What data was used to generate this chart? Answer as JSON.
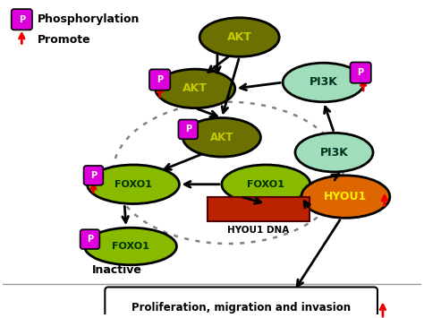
{
  "background_color": "#ffffff",
  "p_color": "#dd00dd",
  "legend_phospho_text": "Phosphorylation",
  "legend_promote_text": "Promote",
  "akt_top_color": "#6b7000",
  "akt_text_color": "#c8c800",
  "foxo1_color": "#88bb00",
  "foxo1_text_color": "#003300",
  "pi3k_top_color": "#a0ddbb",
  "pi3k_text_color": "#003322",
  "hyou1_color": "#dd6600",
  "hyou1_text_color": "#ffee00",
  "hyou1_dna_color": "#bb2200",
  "hyou1_dna_text_color": "#000000",
  "arrow_color": "#000000",
  "red_color": "#ee0000",
  "prolif_label": "Proliferation, migration and invasion"
}
